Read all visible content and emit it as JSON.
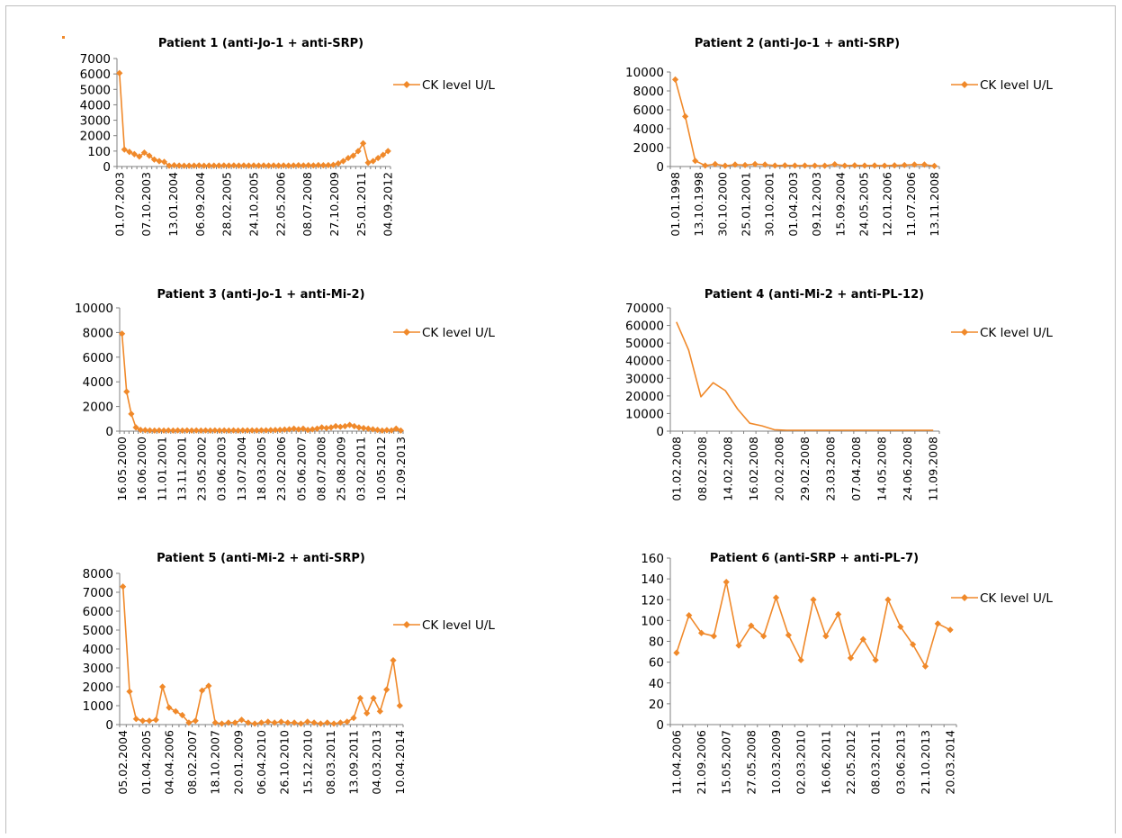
{
  "chart_data": [
    {
      "type": "line",
      "title": "Patient 1 (anti-Jo-1 + anti-SRP)",
      "ylim": [
        0,
        7000
      ],
      "yticks": [
        "7000",
        "6000",
        "5000",
        "4000",
        "3000",
        "2000",
        "100",
        "0"
      ],
      "xticks": [
        "01.07.2003",
        "07.10.2003",
        "13.01.2004",
        "06.09.2004",
        "28.02.2005",
        "24.10.2005",
        "22.05.2006",
        "08.07.2008",
        "27.10.2009",
        "25.01.2011",
        "04.09.2012"
      ],
      "markers": true,
      "series": [
        {
          "name": "CK level U/L",
          "values": [
            6050,
            1100,
            950,
            800,
            650,
            900,
            700,
            450,
            350,
            300,
            50,
            80,
            60,
            50,
            50,
            60,
            70,
            50,
            60,
            60,
            60,
            70,
            60,
            70,
            60,
            70,
            60,
            70,
            60,
            70,
            60,
            70,
            60,
            70,
            60,
            70,
            80,
            70,
            80,
            70,
            90,
            80,
            90,
            100,
            200,
            350,
            550,
            700,
            1000,
            1500,
            250,
            350,
            550,
            750,
            1000
          ]
        }
      ]
    },
    {
      "type": "line",
      "title": "Patient 2 (anti-Jo-1 + anti-SRP)",
      "ylim": [
        0,
        10000
      ],
      "yticks": [
        "10000",
        "8000",
        "6000",
        "4000",
        "2000",
        "0"
      ],
      "xticks": [
        "01.01.1998",
        "13.10.1998",
        "30.10.2000",
        "25.01.2001",
        "30.10.2001",
        "01.04.2003",
        "09.12.2003",
        "15.09.2004",
        "24.05.2005",
        "12.01.2006",
        "11.07.2006",
        "13.11.2008"
      ],
      "markers": true,
      "series": [
        {
          "name": "CK level U/L",
          "values": [
            9200,
            5300,
            600,
            100,
            250,
            80,
            200,
            150,
            250,
            200,
            100,
            120,
            100,
            100,
            90,
            80,
            230,
            90,
            120,
            100,
            110,
            90,
            120,
            150,
            200,
            200,
            60
          ]
        }
      ]
    },
    {
      "type": "line",
      "title": "Patient 3 (anti-Jo-1 + anti-Mi-2)",
      "ylim": [
        0,
        10000
      ],
      "yticks": [
        "10000",
        "8000",
        "6000",
        "4000",
        "2000",
        "0"
      ],
      "xticks": [
        "16.05.2000",
        "16.06.2000",
        "11.01.2001",
        "13.11.2001",
        "23.05.2002",
        "03.06.2003",
        "13.07.2004",
        "18.03.2005",
        "23.02.2006",
        "05.06.2007",
        "08.07.2008",
        "25.08.2009",
        "03.02.2011",
        "10.05.2012",
        "12.09.2013"
      ],
      "markers": true,
      "series": [
        {
          "name": "CK level U/L",
          "values": [
            7900,
            3200,
            1400,
            300,
            100,
            80,
            60,
            50,
            60,
            50,
            60,
            50,
            60,
            50,
            60,
            50,
            60,
            50,
            60,
            50,
            60,
            50,
            60,
            50,
            60,
            50,
            60,
            60,
            60,
            60,
            70,
            70,
            80,
            90,
            100,
            130,
            150,
            200,
            150,
            200,
            100,
            150,
            200,
            300,
            250,
            300,
            400,
            350,
            400,
            500,
            400,
            300,
            250,
            200,
            150,
            100,
            50,
            80,
            60,
            200,
            50
          ]
        }
      ]
    },
    {
      "type": "line",
      "title": "Patient 4 (anti-Mi-2 + anti-PL-12)",
      "ylim": [
        0,
        70000
      ],
      "yticks": [
        "70000",
        "60000",
        "50000",
        "40000",
        "30000",
        "20000",
        "10000",
        "0"
      ],
      "xticks": [
        "01.02.2008",
        "08.02.2008",
        "14.02.2008",
        "16.02.2008",
        "20.02.2008",
        "29.02.2008",
        "23.03.2008",
        "07.04.2008",
        "14.05.2008",
        "24.06.2008",
        "11.09.2008"
      ],
      "markers": false,
      "series": [
        {
          "name": "CK level U/L",
          "values": [
            62000,
            46000,
            19500,
            27500,
            23000,
            12500,
            4500,
            3000,
            800,
            500,
            500,
            500,
            500,
            500,
            500,
            500,
            500,
            500,
            500,
            500,
            500,
            500
          ]
        }
      ]
    },
    {
      "type": "line",
      "title": "Patient 5 (anti-Mi-2 + anti-SRP)",
      "ylim": [
        0,
        8000
      ],
      "yticks": [
        "8000",
        "7000",
        "6000",
        "5000",
        "4000",
        "3000",
        "2000",
        "1000",
        "0"
      ],
      "xticks": [
        "05.02.2004",
        "01.04.2005",
        "04.04.2006",
        "08.02.2007",
        "18.10.2007",
        "20.01.2009",
        "06.04.2010",
        "26.10.2010",
        "15.12.2010",
        "08.03.2011",
        "13.09.2011",
        "04.03.2013",
        "10.04.2014"
      ],
      "markers": true,
      "series": [
        {
          "name": "CK level U/L",
          "values": [
            7300,
            1750,
            300,
            200,
            200,
            250,
            2000,
            900,
            700,
            500,
            100,
            200,
            1800,
            2050,
            100,
            50,
            100,
            100,
            250,
            100,
            50,
            100,
            150,
            100,
            150,
            100,
            100,
            50,
            150,
            100,
            50,
            100,
            50,
            100,
            150,
            350,
            1400,
            600,
            1400,
            700,
            1850,
            3400,
            1000
          ]
        }
      ]
    },
    {
      "type": "line",
      "title": "Patient 6 (anti-SRP + anti-PL-7)",
      "ylim": [
        0,
        160
      ],
      "yticks": [
        "160",
        "140",
        "120",
        "100",
        "80",
        "60",
        "40",
        "20",
        "0"
      ],
      "xticks": [
        "11.04.2006",
        "21.09.2006",
        "15.05.2007",
        "27.05.2008",
        "10.03.2009",
        "02.03.2010",
        "16.06.2011",
        "22.05.2012",
        "08.03.2011",
        "03.06.2013",
        "21.10.2013",
        "20.03.2014"
      ],
      "markers": true,
      "series": [
        {
          "name": "CK level U/L",
          "values": [
            69,
            105,
            88,
            85,
            137,
            76,
            95,
            85,
            122,
            86,
            62,
            120,
            85,
            106,
            64,
            82,
            62,
            120,
            94,
            77,
            56,
            97,
            91
          ]
        }
      ]
    }
  ],
  "colors": {
    "series": "#f0892a",
    "axis": "#808080",
    "frame": "#bdbdbd"
  }
}
